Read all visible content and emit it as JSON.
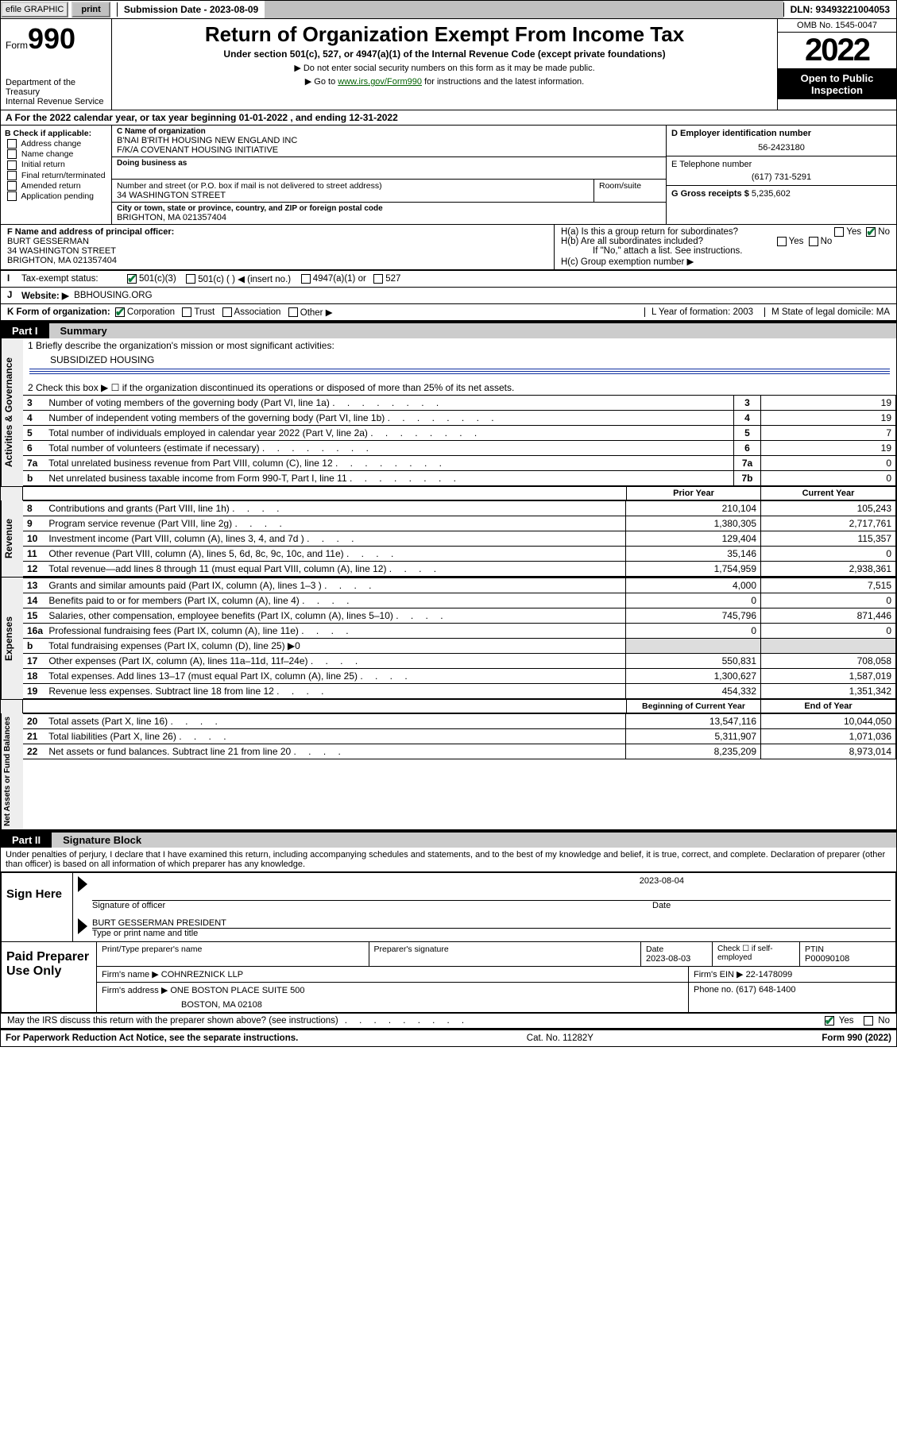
{
  "topbar": {
    "efile": "efile GRAPHIC",
    "print": "print",
    "subdate_label": "Submission Date - 2023-08-09",
    "dln": "DLN: 93493221004053"
  },
  "header": {
    "form_word": "Form",
    "form_num": "990",
    "dept": "Department of the Treasury",
    "irs": "Internal Revenue Service",
    "title": "Return of Organization Exempt From Income Tax",
    "sub1": "Under section 501(c), 527, or 4947(a)(1) of the Internal Revenue Code (except private foundations)",
    "sub2": "▶ Do not enter social security numbers on this form as it may be made public.",
    "sub3_pre": "▶ Go to ",
    "sub3_link": "www.irs.gov/Form990",
    "sub3_post": " for instructions and the latest information.",
    "omb": "OMB No. 1545-0047",
    "year": "2022",
    "open": "Open to Public Inspection"
  },
  "rowA": "A For the 2022 calendar year, or tax year beginning 01-01-2022    , and ending 12-31-2022",
  "B": {
    "hdr": "B Check if applicable:",
    "items": [
      "Address change",
      "Name change",
      "Initial return",
      "Final return/terminated",
      "Amended return",
      "Application pending"
    ]
  },
  "C": {
    "name_lbl": "C Name of organization",
    "name1": "B'NAI B'RITH HOUSING NEW ENGLAND INC",
    "name2": "F/K/A COVENANT HOUSING INITIATIVE",
    "dba_lbl": "Doing business as",
    "addr_lbl": "Number and street (or P.O. box if mail is not delivered to street address)",
    "room_lbl": "Room/suite",
    "street": "34 WASHINGTON STREET",
    "city_lbl": "City or town, state or province, country, and ZIP or foreign postal code",
    "city": "BRIGHTON, MA  021357404"
  },
  "D": {
    "lbl": "D Employer identification number",
    "val": "56-2423180"
  },
  "E": {
    "lbl": "E Telephone number",
    "val": "(617) 731-5291"
  },
  "G": {
    "lbl": "G Gross receipts $",
    "val": "5,235,602"
  },
  "F": {
    "lbl": "F  Name and address of principal officer:",
    "l1": "BURT GESSERMAN",
    "l2": "34 WASHINGTON STREET",
    "l3": "BRIGHTON, MA  021357404"
  },
  "H": {
    "a": "H(a)  Is this a group return for subordinates?",
    "b": "H(b)  Are all subordinates included?",
    "b_note": "If \"No,\" attach a list. See instructions.",
    "c": "H(c)  Group exemption number ▶",
    "yes": "Yes",
    "no": "No"
  },
  "I": {
    "lbl": "Tax-exempt status:",
    "opts": [
      "501(c)(3)",
      "501(c) (   ) ◀ (insert no.)",
      "4947(a)(1) or",
      "527"
    ]
  },
  "J": {
    "lbl": "Website: ▶",
    "val": "BBHOUSING.ORG"
  },
  "K": {
    "lbl": "K Form of organization:",
    "opts": [
      "Corporation",
      "Trust",
      "Association",
      "Other ▶"
    ]
  },
  "L": {
    "lbl": "L Year of formation:",
    "val": "2003"
  },
  "M": {
    "lbl": "M State of legal domicile:",
    "val": "MA"
  },
  "partI": {
    "tag": "Part I",
    "title": "Summary"
  },
  "gov": {
    "hdr": "Activities & Governance",
    "l1_lbl": "1  Briefly describe the organization's mission or most significant activities:",
    "l1_val": "SUBSIDIZED HOUSING",
    "l2": "2    Check this box ▶ ☐  if the organization discontinued its operations or disposed of more than 25% of its net assets.",
    "rows": [
      {
        "n": "3",
        "t": "Number of voting members of the governing body (Part VI, line 1a)",
        "box": "3",
        "v": "19"
      },
      {
        "n": "4",
        "t": "Number of independent voting members of the governing body (Part VI, line 1b)",
        "box": "4",
        "v": "19"
      },
      {
        "n": "5",
        "t": "Total number of individuals employed in calendar year 2022 (Part V, line 2a)",
        "box": "5",
        "v": "7"
      },
      {
        "n": "6",
        "t": "Total number of volunteers (estimate if necessary)",
        "box": "6",
        "v": "19"
      },
      {
        "n": "7a",
        "t": "Total unrelated business revenue from Part VIII, column (C), line 12",
        "box": "7a",
        "v": "0"
      },
      {
        "n": "b",
        "t": "Net unrelated business taxable income from Form 990-T, Part I, line 11",
        "box": "7b",
        "v": "0"
      }
    ]
  },
  "twoCol": {
    "hd_prior": "Prior Year",
    "hd_curr": "Current Year",
    "hd_beg": "Beginning of Current Year",
    "hd_end": "End of Year"
  },
  "rev": {
    "hdr": "Revenue",
    "rows": [
      {
        "n": "8",
        "t": "Contributions and grants (Part VIII, line 1h)",
        "p": "210,104",
        "c": "105,243"
      },
      {
        "n": "9",
        "t": "Program service revenue (Part VIII, line 2g)",
        "p": "1,380,305",
        "c": "2,717,761"
      },
      {
        "n": "10",
        "t": "Investment income (Part VIII, column (A), lines 3, 4, and 7d )",
        "p": "129,404",
        "c": "115,357"
      },
      {
        "n": "11",
        "t": "Other revenue (Part VIII, column (A), lines 5, 6d, 8c, 9c, 10c, and 11e)",
        "p": "35,146",
        "c": "0"
      },
      {
        "n": "12",
        "t": "Total revenue—add lines 8 through 11 (must equal Part VIII, column (A), line 12)",
        "p": "1,754,959",
        "c": "2,938,361"
      }
    ]
  },
  "exp": {
    "hdr": "Expenses",
    "rows": [
      {
        "n": "13",
        "t": "Grants and similar amounts paid (Part IX, column (A), lines 1–3 )",
        "p": "4,000",
        "c": "7,515"
      },
      {
        "n": "14",
        "t": "Benefits paid to or for members (Part IX, column (A), line 4)",
        "p": "0",
        "c": "0"
      },
      {
        "n": "15",
        "t": "Salaries, other compensation, employee benefits (Part IX, column (A), lines 5–10)",
        "p": "745,796",
        "c": "871,446"
      },
      {
        "n": "16a",
        "t": "Professional fundraising fees (Part IX, column (A), line 11e)",
        "p": "0",
        "c": "0"
      },
      {
        "n": "b",
        "t": "Total fundraising expenses (Part IX, column (D), line 25) ▶0",
        "p": "",
        "c": "",
        "noval": true
      },
      {
        "n": "17",
        "t": "Other expenses (Part IX, column (A), lines 11a–11d, 11f–24e)",
        "p": "550,831",
        "c": "708,058"
      },
      {
        "n": "18",
        "t": "Total expenses. Add lines 13–17 (must equal Part IX, column (A), line 25)",
        "p": "1,300,627",
        "c": "1,587,019"
      },
      {
        "n": "19",
        "t": "Revenue less expenses. Subtract line 18 from line 12",
        "p": "454,332",
        "c": "1,351,342"
      }
    ]
  },
  "net": {
    "hdr": "Net Assets or Fund Balances",
    "rows": [
      {
        "n": "20",
        "t": "Total assets (Part X, line 16)",
        "p": "13,547,116",
        "c": "10,044,050"
      },
      {
        "n": "21",
        "t": "Total liabilities (Part X, line 26)",
        "p": "5,311,907",
        "c": "1,071,036"
      },
      {
        "n": "22",
        "t": "Net assets or fund balances. Subtract line 21 from line 20",
        "p": "8,235,209",
        "c": "8,973,014"
      }
    ]
  },
  "partII": {
    "tag": "Part II",
    "title": "Signature Block"
  },
  "penalty": "Under penalties of perjury, I declare that I have examined this return, including accompanying schedules and statements, and to the best of my knowledge and belief, it is true, correct, and complete. Declaration of preparer (other than officer) is based on all information of which preparer has any knowledge.",
  "sign": {
    "here": "Sign Here",
    "sig_lbl": "Signature of officer",
    "date_lbl": "Date",
    "date": "2023-08-04",
    "name": "BURT GESSERMAN  PRESIDENT",
    "name_lbl": "Type or print name and title"
  },
  "prep": {
    "title": "Paid Preparer Use Only",
    "c1": "Print/Type preparer's name",
    "c2": "Preparer's signature",
    "c3": "Date",
    "c3v": "2023-08-03",
    "c4": "Check ☐ if self-employed",
    "c5": "PTIN",
    "c5v": "P00090108",
    "firm_lbl": "Firm's name    ▶",
    "firm": "COHNREZNICK LLP",
    "ein_lbl": "Firm's EIN ▶",
    "ein": "22-1478099",
    "addr_lbl": "Firm's address ▶",
    "addr1": "ONE BOSTON PLACE SUITE 500",
    "addr2": "BOSTON, MA  02108",
    "phone_lbl": "Phone no.",
    "phone": "(617) 648-1400"
  },
  "may": "May the IRS discuss this return with the preparer shown above? (see instructions)",
  "footer": {
    "l": "For Paperwork Reduction Act Notice, see the separate instructions.",
    "m": "Cat. No. 11282Y",
    "r": "Form 990 (2022)"
  }
}
